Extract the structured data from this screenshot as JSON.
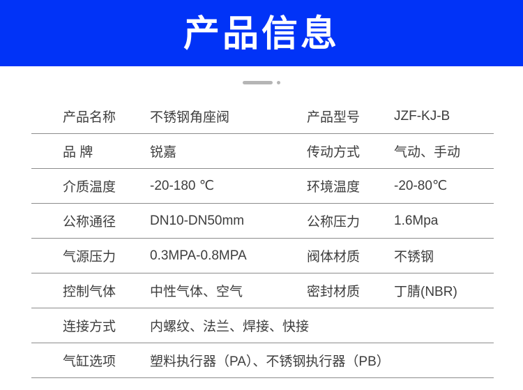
{
  "header": {
    "title": "产品信息",
    "bg_color": "#0133f7",
    "text_color": "#ffffff"
  },
  "divider": {
    "color": "#b5b5b5",
    "shape": "pill-and-dot"
  },
  "table": {
    "line_color": "#8c8c8c",
    "text_color": "#3d3d3d",
    "rows": [
      {
        "l1": "产品名称",
        "v1": "不锈钢角座阀",
        "l2": "产品型号",
        "v2": "JZF-KJ-B"
      },
      {
        "l1": "品 牌",
        "v1": "锐嘉",
        "l2": "传动方式",
        "v2": "气动、手动"
      },
      {
        "l1": "介质温度",
        "v1": "-20-180 ℃",
        "l2": "环境温度",
        "v2": "-20-80℃"
      },
      {
        "l1": "公称通径",
        "v1": "DN10-DN50mm",
        "l2": "公称压力",
        "v2": "1.6Mpa"
      },
      {
        "l1": "气源压力",
        "v1": "0.3MPA-0.8MPA",
        "l2": "阀体材质",
        "v2": "不锈钢"
      },
      {
        "l1": "控制气体",
        "v1": "中性气体、空气",
        "l2": "密封材质",
        "v2": "丁腈(NBR)"
      },
      {
        "l1": "连接方式",
        "v1": "内螺纹、法兰、焊接、快接"
      },
      {
        "l1": "气缸选项",
        "v1": "塑料执行器（PA）、不锈钢执行器（PB）"
      }
    ]
  }
}
